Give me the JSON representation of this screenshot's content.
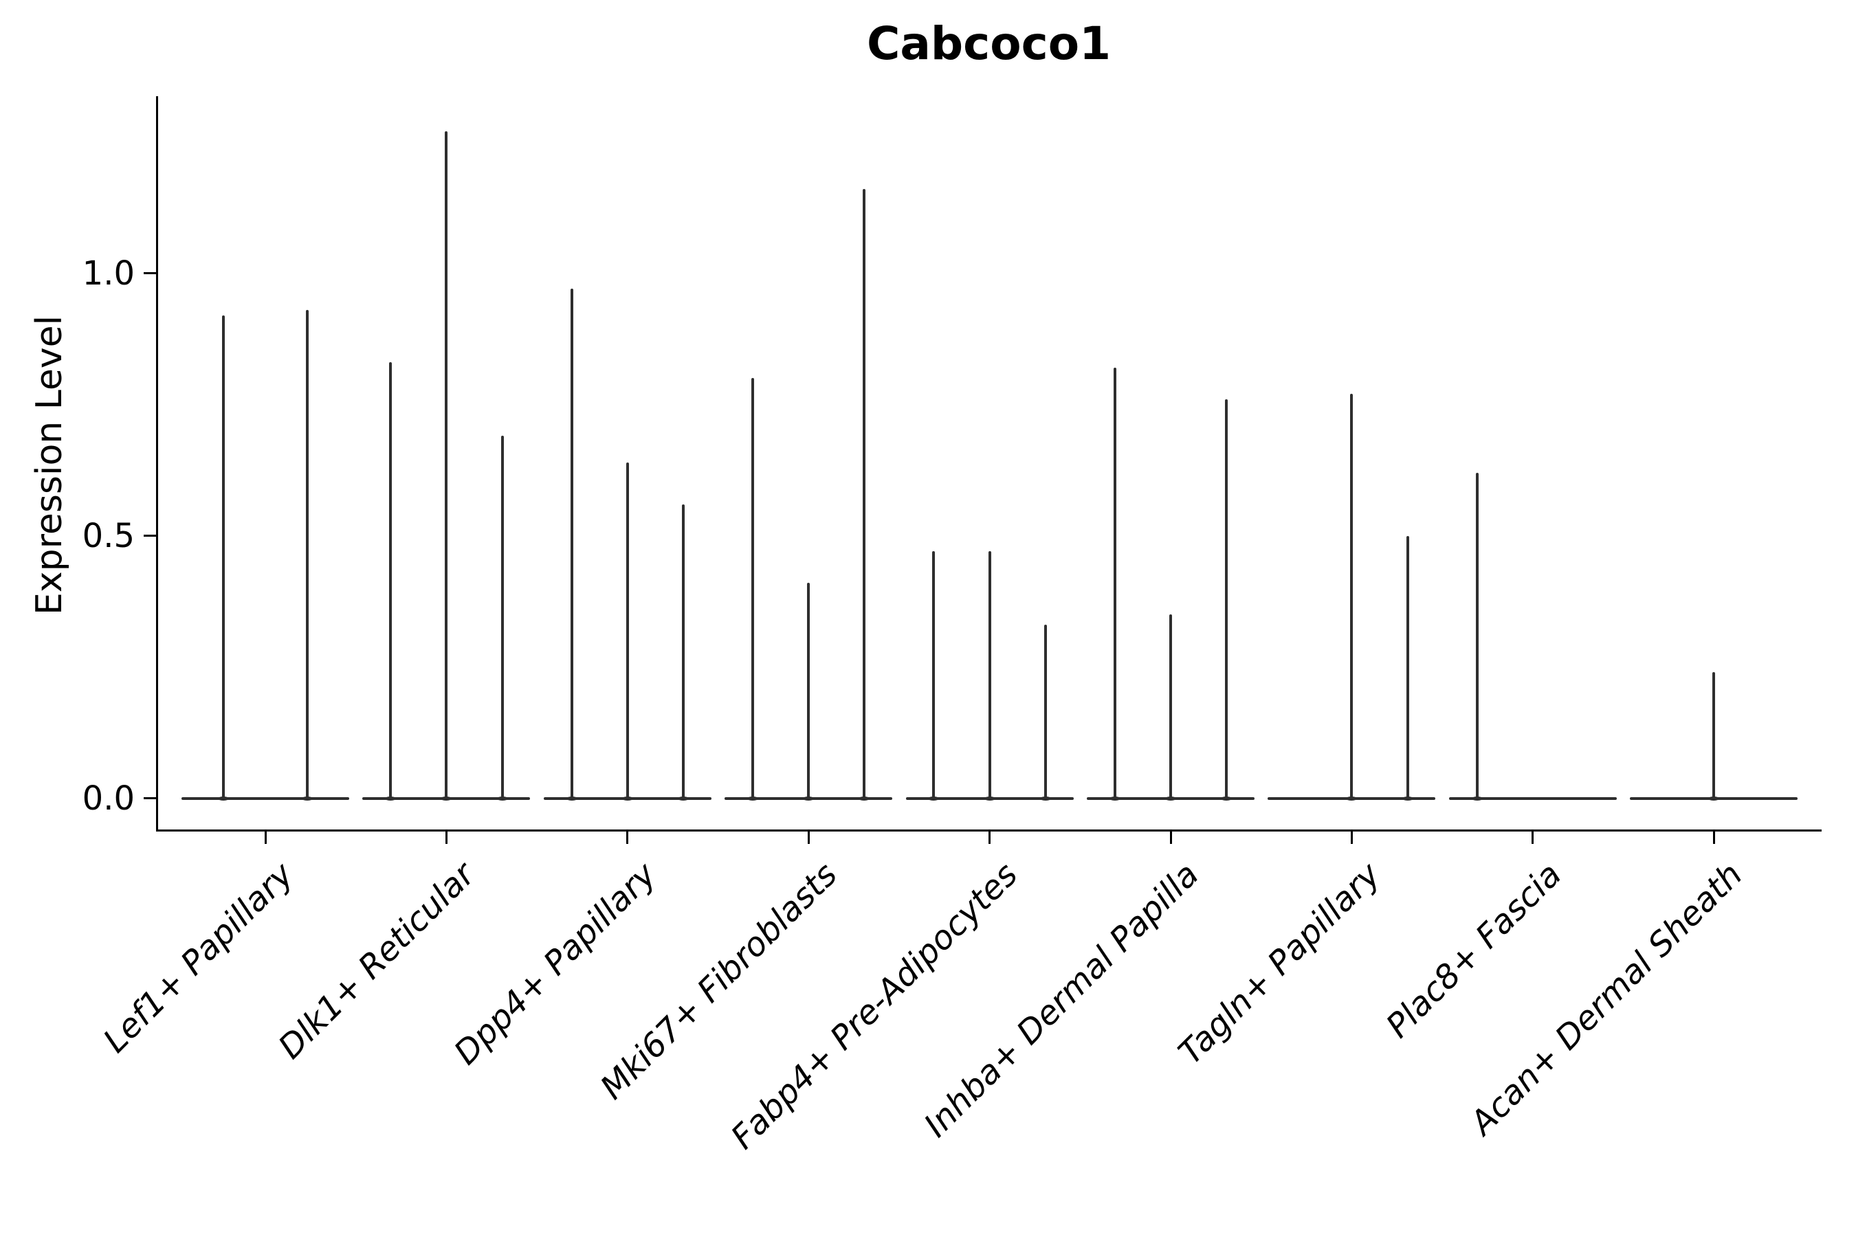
{
  "chart_data": {
    "type": "violin",
    "title": "Cabcoco1",
    "ylabel": "Expression Level",
    "xlabel": "",
    "grid": false,
    "legend": "none",
    "ylim": [
      -0.06,
      1.33
    ],
    "yticks": [
      {
        "value": 0.0,
        "label": "0.0"
      },
      {
        "value": 0.5,
        "label": "0.5"
      },
      {
        "value": 1.0,
        "label": "1.0"
      }
    ],
    "colors": {
      "violin_line": "#2e2e2e",
      "axis_spine": "#000000",
      "text": "#000000",
      "background": "#ffffff"
    },
    "categories": [
      {
        "label": "Lef1+ Papillary",
        "violins": [
          {
            "offset_frac": -0.25,
            "peak": 0.92
          },
          {
            "offset_frac": 0.25,
            "peak": 0.93
          }
        ]
      },
      {
        "label": "Dlk1+ Reticular",
        "violins": [
          {
            "offset_frac": -0.333,
            "peak": 0.83
          },
          {
            "offset_frac": 0,
            "peak": 1.27
          },
          {
            "offset_frac": 0.333,
            "peak": 0.69
          }
        ]
      },
      {
        "label": "Dpp4+ Papillary",
        "violins": [
          {
            "offset_frac": -0.333,
            "peak": 0.97
          },
          {
            "offset_frac": 0,
            "peak": 0.64
          },
          {
            "offset_frac": 0.333,
            "peak": 0.56
          }
        ]
      },
      {
        "label": "Mki67+ Fibroblasts",
        "violins": [
          {
            "offset_frac": -0.333,
            "peak": 0.8
          },
          {
            "offset_frac": 0,
            "peak": 0.41
          },
          {
            "offset_frac": 0.333,
            "peak": 1.16
          }
        ]
      },
      {
        "label": "Fabp4+ Pre-Adipocytes",
        "violins": [
          {
            "offset_frac": -0.333,
            "peak": 0.47
          },
          {
            "offset_frac": 0,
            "peak": 0.47
          },
          {
            "offset_frac": 0.333,
            "peak": 0.33
          }
        ]
      },
      {
        "label": "Inhba+ Dermal Papilla",
        "violins": [
          {
            "offset_frac": -0.333,
            "peak": 0.82
          },
          {
            "offset_frac": 0,
            "peak": 0.35
          },
          {
            "offset_frac": 0.333,
            "peak": 0.76
          }
        ]
      },
      {
        "label": "Tagln+ Papillary",
        "violins": [
          {
            "offset_frac": -0.333,
            "peak": 0
          },
          {
            "offset_frac": 0,
            "peak": 0.77
          },
          {
            "offset_frac": 0.333,
            "peak": 0.5
          }
        ]
      },
      {
        "label": "Plac8+ Fascia",
        "violins": [
          {
            "offset_frac": -0.333,
            "peak": 0.62
          },
          {
            "offset_frac": 0,
            "peak": 0
          },
          {
            "offset_frac": 0.333,
            "peak": 0
          }
        ]
      },
      {
        "label": "Acan+ Dermal Sheath",
        "violins": [
          {
            "offset_frac": -0.333,
            "peak": 0
          },
          {
            "offset_frac": 0,
            "peak": 0.24
          },
          {
            "offset_frac": 0.333,
            "peak": 0
          }
        ]
      }
    ]
  }
}
